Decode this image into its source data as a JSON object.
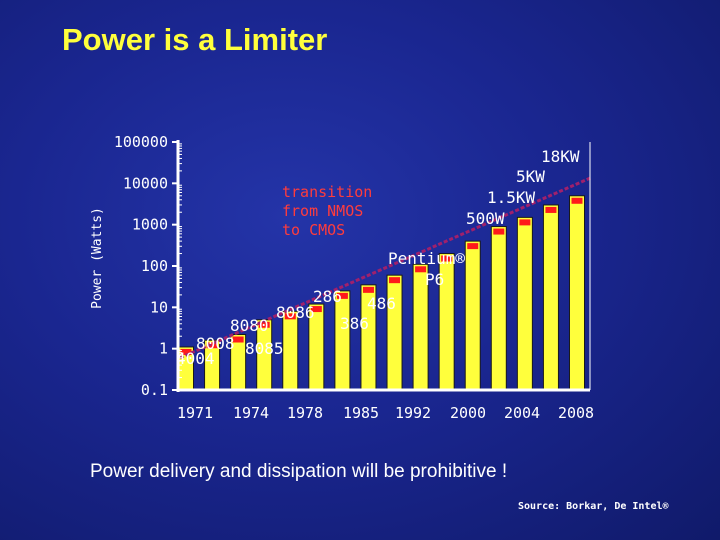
{
  "slide": {
    "title": "Power is a Limiter",
    "caption": "Power delivery and dissipation will be prohibitive !",
    "source": "Source: Borkar, De Intel®"
  },
  "colors": {
    "title": "#ffff3c",
    "bar_fill": "#ffff3c",
    "bar_cap": "#ff1a1a",
    "trend_line": "#a0206c",
    "axis": "#ffffff"
  },
  "chart_data": {
    "type": "bar",
    "title": "",
    "ylabel": "Power (Watts)",
    "xlabel": "",
    "yscale": "log",
    "ylim": [
      0.1,
      100000
    ],
    "y_ticks": [
      "100000",
      "10000",
      "1000",
      "100",
      "10",
      "1",
      "0.1"
    ],
    "x_tick_labels": [
      "1971",
      "1974",
      "1978",
      "1985",
      "1992",
      "2000",
      "2004",
      "2008"
    ],
    "values": [
      1.1,
      1.6,
      2.2,
      5,
      8,
      12,
      25,
      35,
      60,
      110,
      200,
      400,
      900,
      1500,
      3000,
      5000
    ],
    "series": [
      {
        "name": "",
        "values": [
          1.1,
          1.6,
          2.2,
          5,
          8,
          12,
          25,
          35,
          60,
          110,
          200,
          400,
          900,
          1500,
          3000,
          5000
        ]
      }
    ],
    "grid": false,
    "trend_line": true,
    "annotations": [
      {
        "text": "4004",
        "x": "1971",
        "y": 1
      },
      {
        "text": "8008",
        "x": "1972",
        "y": 2.5
      },
      {
        "text": "8080",
        "x": "1974",
        "y": 5
      },
      {
        "text": "8085",
        "x": "1976",
        "y": 2
      },
      {
        "text": "8086",
        "x": "1978",
        "y": 12
      },
      {
        "text": "286",
        "x": "1982",
        "y": 25
      },
      {
        "text": "386",
        "x": "1985",
        "y": 5
      },
      {
        "text": "486",
        "x": "1989",
        "y": 12
      },
      {
        "text": "Pentium®",
        "x": "1993",
        "y": 100
      },
      {
        "text": "P6",
        "x": "1995",
        "y": 40
      },
      {
        "text": "500W",
        "x": "2003",
        "y": 500
      },
      {
        "text": "1.5KW",
        "x": "2004",
        "y": 1500
      },
      {
        "text": "5KW",
        "x": "2006",
        "y": 5000
      },
      {
        "text": "18KW",
        "x": "2008",
        "y": 18000
      }
    ],
    "callout": "transition\nfrom NMOS\nto CMOS"
  }
}
